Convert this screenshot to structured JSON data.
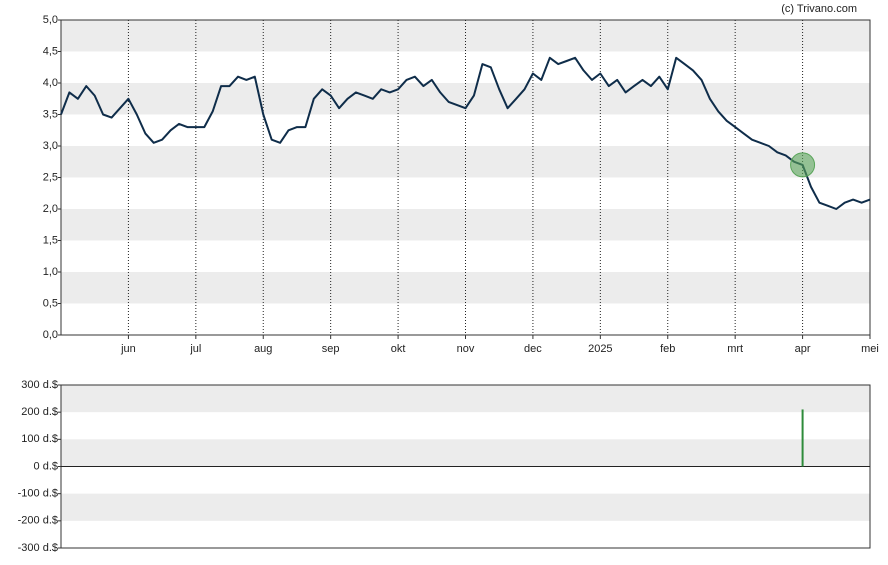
{
  "credit": "(c) Trivano.com",
  "chart_data": [
    {
      "type": "line",
      "x": [
        5,
        5.125,
        5.25,
        5.375,
        5.5,
        5.625,
        5.75,
        5.875,
        6,
        6.125,
        6.25,
        6.375,
        6.5,
        6.625,
        6.75,
        6.875,
        7,
        7.125,
        7.25,
        7.375,
        7.5,
        7.625,
        7.75,
        7.875,
        8,
        8.125,
        8.25,
        8.375,
        8.5,
        8.625,
        8.75,
        8.875,
        9,
        9.125,
        9.25,
        9.375,
        9.5,
        9.625,
        9.75,
        9.875,
        10,
        10.125,
        10.25,
        10.375,
        10.5,
        10.625,
        10.75,
        10.875,
        11,
        11.125,
        11.25,
        11.375,
        11.5,
        11.625,
        11.75,
        11.875,
        12,
        12.125,
        12.25,
        12.375,
        12.5,
        12.625,
        12.75,
        12.875,
        13,
        13.125,
        13.25,
        13.375,
        13.5,
        13.625,
        13.75,
        13.875,
        14,
        14.125,
        14.25,
        14.375,
        14.5,
        14.625,
        14.75,
        14.875,
        15,
        15.125,
        15.25,
        15.375,
        15.5,
        15.625,
        15.75,
        15.875,
        16,
        16.125,
        16.25,
        16.375,
        16.5,
        16.625,
        16.75,
        16.875,
        17
      ],
      "values": [
        3.5,
        3.85,
        3.75,
        3.95,
        3.8,
        3.5,
        3.45,
        3.6,
        3.75,
        3.5,
        3.2,
        3.05,
        3.1,
        3.25,
        3.35,
        3.3,
        3.3,
        3.3,
        3.55,
        3.95,
        3.95,
        4.1,
        4.05,
        4.1,
        3.5,
        3.1,
        3.05,
        3.25,
        3.3,
        3.3,
        3.75,
        3.9,
        3.8,
        3.6,
        3.75,
        3.85,
        3.8,
        3.75,
        3.9,
        3.85,
        3.9,
        4.05,
        4.1,
        3.95,
        4.05,
        3.85,
        3.7,
        3.65,
        3.6,
        3.8,
        4.3,
        4.25,
        3.9,
        3.6,
        3.75,
        3.9,
        4.15,
        4.05,
        4.4,
        4.3,
        4.35,
        4.4,
        4.2,
        4.05,
        4.15,
        3.95,
        4.05,
        3.85,
        3.95,
        4.05,
        3.95,
        4.1,
        3.9,
        4.4,
        4.3,
        4.2,
        4.05,
        3.75,
        3.55,
        3.4,
        3.3,
        3.2,
        3.1,
        3.05,
        3.0,
        2.9,
        2.85,
        2.75,
        2.7,
        2.35,
        2.1,
        2.05,
        2.0,
        2.1,
        2.15,
        2.1,
        2.15
      ],
      "color": "#0f2d4a",
      "highlight": {
        "x": 16,
        "y": 2.7,
        "color": "#5aa55a"
      },
      "xlim": [
        5,
        17
      ],
      "xticks": [
        {
          "value": 6,
          "label": "jun"
        },
        {
          "value": 7,
          "label": "jul"
        },
        {
          "value": 8,
          "label": "aug"
        },
        {
          "value": 9,
          "label": "sep"
        },
        {
          "value": 10,
          "label": "okt"
        },
        {
          "value": 11,
          "label": "nov"
        },
        {
          "value": 12,
          "label": "dec"
        },
        {
          "value": 13,
          "label": "2025"
        },
        {
          "value": 14,
          "label": "feb"
        },
        {
          "value": 15,
          "label": "mrt"
        },
        {
          "value": 16,
          "label": "apr"
        },
        {
          "value": 17,
          "label": "mei"
        }
      ],
      "ylim": [
        0,
        5
      ],
      "yticks": [
        {
          "value": 0,
          "label": "0,0"
        },
        {
          "value": 0.5,
          "label": "0,5"
        },
        {
          "value": 1,
          "label": "1,0"
        },
        {
          "value": 1.5,
          "label": "1,5"
        },
        {
          "value": 2,
          "label": "2,0"
        },
        {
          "value": 2.5,
          "label": "2,5"
        },
        {
          "value": 3,
          "label": "3,0"
        },
        {
          "value": 3.5,
          "label": "3,5"
        },
        {
          "value": 4,
          "label": "4,0"
        },
        {
          "value": 4.5,
          "label": "4,5"
        },
        {
          "value": 5,
          "label": "5,0"
        }
      ],
      "grid": true
    },
    {
      "type": "bar",
      "x": [
        16
      ],
      "values": [
        210
      ],
      "color": "#2e8b3a",
      "xlim": [
        5,
        17
      ],
      "ylim": [
        -300,
        300
      ],
      "yticks": [
        {
          "value": -300,
          "label": "-300 d.$"
        },
        {
          "value": -200,
          "label": "-200 d.$"
        },
        {
          "value": -100,
          "label": "-100 d.$"
        },
        {
          "value": 0,
          "label": "0 d.$"
        },
        {
          "value": 100,
          "label": "100 d.$"
        },
        {
          "value": 200,
          "label": "200 d.$"
        },
        {
          "value": 300,
          "label": "300 d.$"
        }
      ],
      "grid": false
    }
  ]
}
